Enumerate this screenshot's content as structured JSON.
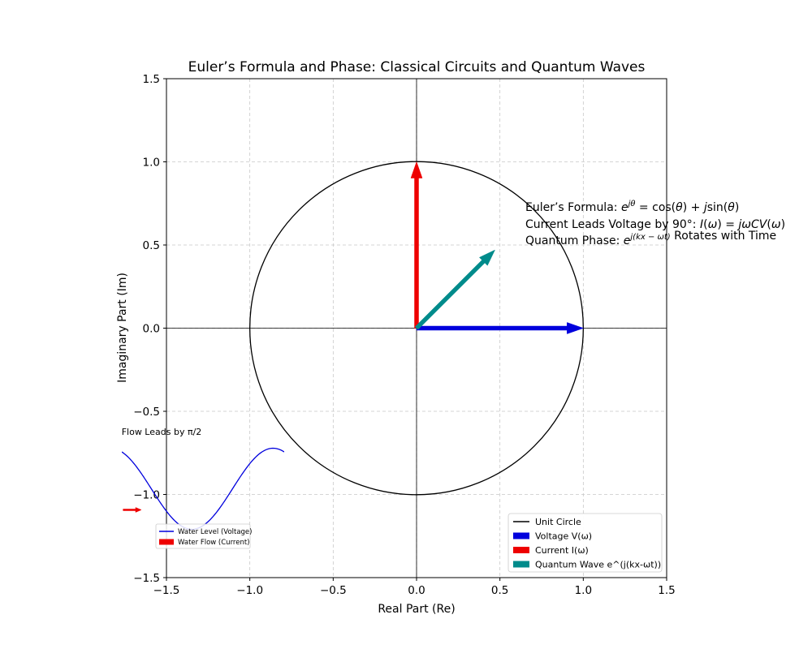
{
  "chart_data": {
    "type": "vector",
    "title": "Euler’s Formula and Phase: Classical Circuits and Quantum Waves",
    "xlabel": "Real Part (Re)",
    "ylabel": "Imaginary Part (Im)",
    "xlim": [
      -1.5,
      1.5
    ],
    "ylim": [
      -1.5,
      1.5
    ],
    "x_ticks": [
      -1.5,
      -1.0,
      -0.5,
      0.0,
      0.5,
      1.0,
      1.5
    ],
    "y_ticks": [
      -1.5,
      -1.0,
      -0.5,
      0.0,
      0.5,
      1.0,
      1.5
    ],
    "x_tick_labels": [
      "−1.5",
      "−1.0",
      "−0.5",
      "0.0",
      "0.5",
      "1.0",
      "1.5"
    ],
    "y_tick_labels": [
      "−1.5",
      "−1.0",
      "−0.5",
      "0.0",
      "0.5",
      "1.0",
      "1.5"
    ],
    "grid": true,
    "grid_color": "#c8c8c8",
    "unit_circle": {
      "radius": 1.0,
      "color": "#000000"
    },
    "vectors": [
      {
        "name": "Voltage V(ω)",
        "x": 1.0,
        "y": 0.0,
        "color": "#0000dd"
      },
      {
        "name": "Current I(ω)",
        "x": 0.0,
        "y": 1.0,
        "color": "#ee0000"
      },
      {
        "name": "Quantum Wave e^(j(kx-ωt))",
        "x": 0.47,
        "y": 0.47,
        "color": "#008b8b"
      }
    ],
    "annotations": [
      {
        "prefix": "Euler’s Formula: ",
        "math_html": "<tspan font-style='italic'>e</tspan><tspan font-size='10' dy='-6' font-style='italic'>jθ</tspan><tspan dy='6'> = cos(</tspan><tspan font-style='italic'>θ</tspan><tspan>) + </tspan><tspan font-style='italic'>j</tspan><tspan>sin(</tspan><tspan font-style='italic'>θ</tspan><tspan>)</tspan>",
        "suffix": ""
      },
      {
        "prefix": "Current Leads Voltage by 90°: ",
        "math_html": "<tspan font-style='italic'>I</tspan><tspan>(</tspan><tspan font-style='italic'>ω</tspan><tspan>) = </tspan><tspan font-style='italic'>jωCV</tspan><tspan>(</tspan><tspan font-style='italic'>ω</tspan><tspan>)</tspan>",
        "suffix": ""
      },
      {
        "prefix": "Quantum Phase: ",
        "math_html": "<tspan font-style='italic'>e</tspan><tspan font-size='10' dy='-6' font-style='italic'>j(kx − ωt)</tspan><tspan dy='6'></tspan>",
        "suffix": " Rotates with Time"
      }
    ],
    "legend": {
      "placement": "lower-right",
      "entries": [
        {
          "label": "Unit Circle",
          "kind": "line",
          "color": "#000000"
        },
        {
          "label": "Voltage V(ω)",
          "kind": "patch",
          "color": "#0000dd"
        },
        {
          "label": "Current I(ω)",
          "kind": "patch",
          "color": "#ee0000"
        },
        {
          "label": "Quantum Wave e^(j(kx-ωt))",
          "kind": "patch",
          "color": "#008b8b"
        }
      ]
    },
    "inset": {
      "title": "Flow Leads by π/2",
      "xlim": [
        0,
        6.283
      ],
      "ylim": [
        -1.25,
        1.25
      ],
      "wave": {
        "name": "Water Level (Voltage)",
        "function": "sin",
        "phase": 0,
        "x_start": 0,
        "x_end": 6.283,
        "color": "#0000dd"
      },
      "arrow": {
        "name": "Water Flow (Current)",
        "x": 0.05,
        "y": 0.0,
        "dx": 0.8,
        "color": "#ee0000"
      },
      "legend": {
        "placement": "lower-left",
        "entries": [
          {
            "label": "Water Level (Voltage)",
            "kind": "line",
            "color": "#0000dd"
          },
          {
            "label": "Water Flow (Current)",
            "kind": "patch",
            "color": "#ee0000"
          }
        ]
      }
    }
  }
}
